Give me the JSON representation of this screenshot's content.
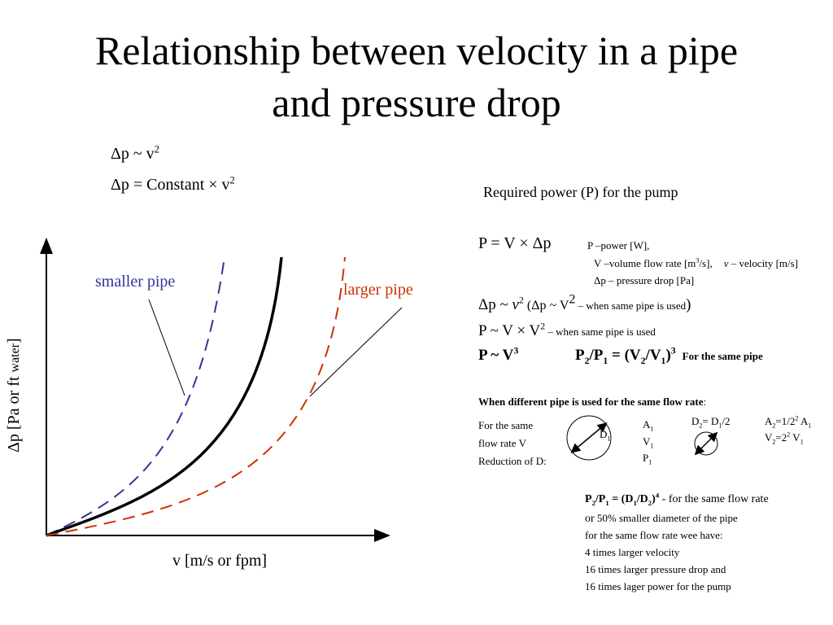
{
  "title": {
    "line1": "Relationship between velocity in a pipe",
    "line2": "and pressure drop"
  },
  "formulas": {
    "f1_base": "Δp ~ v",
    "f1_exp": "2",
    "f2_base": "Δp = Constant × v",
    "f2_exp": "2"
  },
  "graph": {
    "ylabel_main": "Δp  [Pa or ft ",
    "ylabel_sub": "water",
    "ylabel_end": "]",
    "xlabel": "v [m/s or fpm]",
    "label_smaller": "smaller pipe",
    "label_larger": "larger pipe",
    "colors": {
      "smaller": "#333399",
      "middle": "#000000",
      "larger": "#cc3300"
    }
  },
  "power": {
    "heading": "Required power (P) for the pump",
    "eq_main": "P = V × Δp",
    "def_p": "P –power [W],",
    "def_v_a": "V –volume flow rate [m",
    "def_v_exp": "3",
    "def_v_b": "/s],",
    "def_vel_sym": "v",
    "def_vel_txt": " – velocity [m/s]",
    "def_dp": "Δp – pressure drop [Pa]",
    "line2_a": "Δp ~ ",
    "line2_v": "v",
    "line2_exp": "2",
    "line2_b": " (Δp ~ V",
    "line2_exp2": "2",
    "line2_small": " – when same pipe is used",
    "line2_close": ")",
    "line3_a": "P ~ V × V",
    "line3_exp": "2",
    "line3_small": " – when same pipe is used",
    "line4_a": "P ~ V",
    "line4_exp": "3",
    "line4_b1": "P",
    "line4_s1": "2",
    "line4_b2": "/P",
    "line4_s2": "1",
    "line4_b3": " = (V",
    "line4_s3": "2",
    "line4_b4": "/V",
    "line4_s4": "1",
    "line4_b5": ")",
    "line4_exp2": "3",
    "line4_note": "For the same pipe"
  },
  "different_pipe": {
    "heading": "When different pipe is used for the same flow rate",
    "colon": ":",
    "desc_1": "For the same",
    "desc_2": "flow rate V",
    "desc_3": "Reduction of D:",
    "d1_label": "D",
    "d1_sub": "1",
    "a1": "A",
    "a1_sub": "1",
    "v1": "V",
    "v1_sub": "1",
    "p1": "P",
    "p1_sub": "1",
    "d2_a": "D",
    "d2_s": "2",
    "d2_b": "= D",
    "d2_s2": "1",
    "d2_c": "/2",
    "a2_a": "A",
    "a2_s": "2",
    "a2_b": "=1/2",
    "a2_e": "2",
    "a2_c": " A",
    "a2_s2": "1",
    "v2_a": "V",
    "v2_s": "2",
    "v2_b": "=2",
    "v2_e": "2",
    "v2_c": " V",
    "v2_s2": "1"
  },
  "conclusion": {
    "eq_a": "P",
    "eq_s1": "2",
    "eq_b": "/P",
    "eq_s2": "1",
    "eq_c": " = (D",
    "eq_s3": "1",
    "eq_d": "/D",
    "eq_s4": "2",
    "eq_e": ")",
    "eq_exp": "4",
    "eq_note": "  - for the same flow rate",
    "l1_a": "or",
    "l1_b": " 50% smaller diameter of the pipe",
    "l2": "for the same flow rate wee have:",
    "l3": "4 times larger velocity",
    "l4": "16 times larger pressure drop and",
    "l5": "16 times lager power for the pump"
  }
}
